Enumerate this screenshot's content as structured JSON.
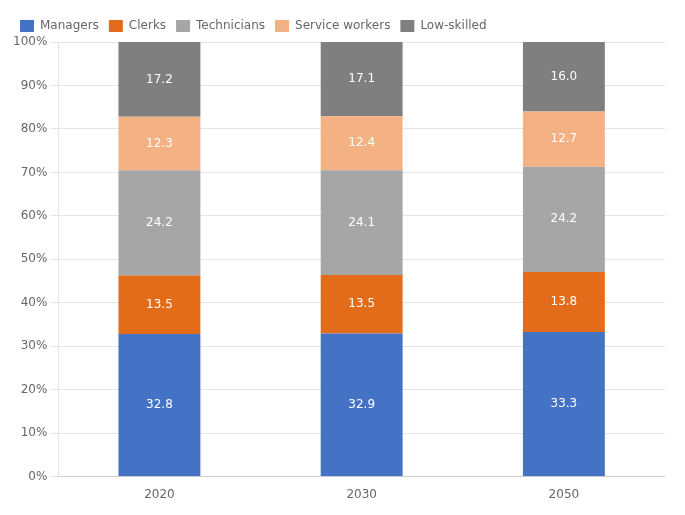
{
  "chart_data": {
    "type": "bar",
    "stacked": true,
    "data_labels": true,
    "grid": true,
    "legend": "upper left",
    "categories": [
      "2020",
      "2030",
      "2050"
    ],
    "series": [
      {
        "name": "Managers",
        "color": "#4472C4",
        "values": [
          32.8,
          32.9,
          33.3
        ]
      },
      {
        "name": "Clerks",
        "color": "#E36C1A",
        "values": [
          13.5,
          13.5,
          13.8
        ]
      },
      {
        "name": "Technicians",
        "color": "#A6A6A6",
        "values": [
          24.2,
          24.1,
          24.2
        ]
      },
      {
        "name": "Service workers",
        "color": "#F4B183",
        "values": [
          12.3,
          12.4,
          12.7
        ]
      },
      {
        "name": "Low-skilled",
        "color": "#7F7F7F",
        "values": [
          17.2,
          17.1,
          16.0
        ],
        "value_labels": [
          "17.2",
          "17.1",
          "16.0"
        ]
      }
    ],
    "ylim": [
      0,
      100
    ],
    "yticks": [
      {
        "value": 0,
        "label": "0%"
      },
      {
        "value": 10,
        "label": "10%"
      },
      {
        "value": 20,
        "label": "20%"
      },
      {
        "value": 30,
        "label": "30%"
      },
      {
        "value": 40,
        "label": "40%"
      },
      {
        "value": 50,
        "label": "50%"
      },
      {
        "value": 60,
        "label": "60%"
      },
      {
        "value": 70,
        "label": "70%"
      },
      {
        "value": 80,
        "label": "80%"
      },
      {
        "value": 90,
        "label": "90%"
      },
      {
        "value": 100,
        "label": "100%"
      }
    ]
  }
}
